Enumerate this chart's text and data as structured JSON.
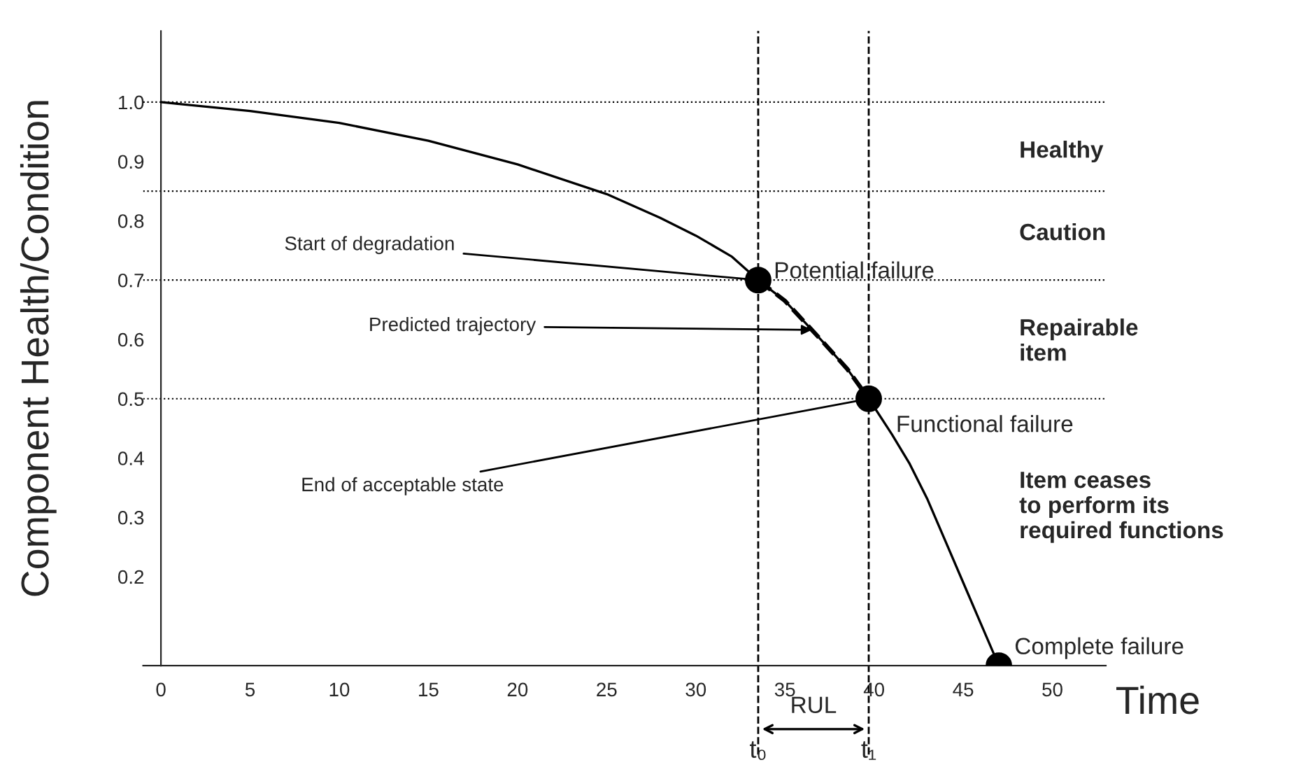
{
  "chart_data": {
    "type": "line",
    "xlabel": "Time",
    "ylabel": "Component Health/Condition",
    "xlim": [
      -1,
      53
    ],
    "ylim": [
      0.05,
      1.12
    ],
    "xticks": [
      0,
      5,
      10,
      15,
      20,
      25,
      30,
      35,
      40,
      45,
      50
    ],
    "yticks": [
      0.2,
      0.3,
      0.4,
      0.5,
      0.6,
      0.7,
      0.8,
      0.9,
      {
        "value": 1.0,
        "label": "1.0"
      }
    ],
    "grid": false,
    "legend": false,
    "series": [
      {
        "color": "#000000",
        "line_style": "solid",
        "marker": "none",
        "x": [
          0,
          5,
          10,
          15,
          20,
          25,
          28,
          30,
          32,
          33.5,
          35,
          37,
          38.5,
          39.7,
          41,
          42,
          43,
          44,
          45,
          46,
          47
        ],
        "values": [
          1.0,
          0.985,
          0.965,
          0.935,
          0.895,
          0.845,
          0.805,
          0.775,
          0.74,
          0.7,
          0.665,
          0.6,
          0.55,
          0.5,
          0.44,
          0.39,
          0.33,
          0.26,
          0.19,
          0.12,
          0.05
        ]
      },
      {
        "color": "#000000",
        "line_style": "dashed",
        "marker": "none",
        "x": [
          33.5,
          35,
          37,
          38.5,
          39.7
        ],
        "values": [
          0.7,
          0.665,
          0.6,
          0.55,
          0.5
        ]
      },
      {
        "type": "scatter",
        "color": "#000000",
        "marker": "circle",
        "x": [
          33.5,
          39.7,
          47
        ],
        "values": [
          0.7,
          0.5,
          0.05
        ]
      }
    ],
    "ref_lines": [
      {
        "axis": "y",
        "value": 1.0,
        "line_style": "dotted",
        "color": "#000000"
      },
      {
        "axis": "y",
        "value": 0.85,
        "line_style": "dotted",
        "color": "#000000"
      },
      {
        "axis": "y",
        "value": 0.7,
        "line_style": "dotted",
        "color": "#000000"
      },
      {
        "axis": "y",
        "value": 0.5,
        "line_style": "dotted",
        "color": "#000000"
      },
      {
        "axis": "x",
        "value": 33.5,
        "label": "t₀",
        "line_style": "dashed",
        "color": "#000000"
      },
      {
        "axis": "x",
        "value": 39.7,
        "label": "t₁",
        "line_style": "dashed",
        "color": "#000000"
      }
    ],
    "annotations": [
      "Healthy",
      "Caution",
      "Repairable\nitem",
      "Item ceases\nto perform its\nrequired functions",
      {
        "text": "Start of degradation",
        "x": 33.5,
        "y": 0.7
      },
      {
        "text": "Predicted trajectory",
        "x": 36.5,
        "y": 0.616
      },
      {
        "text": "End of acceptable state",
        "x": 39.7,
        "y": 0.5
      },
      {
        "text": "Potential failure",
        "x": 33.5,
        "y": 0.7
      },
      {
        "text": "Functional failure",
        "x": 39.7,
        "y": 0.5
      },
      {
        "text": "Complete failure",
        "x": 47,
        "y": 0.05
      },
      "RUL"
    ]
  }
}
